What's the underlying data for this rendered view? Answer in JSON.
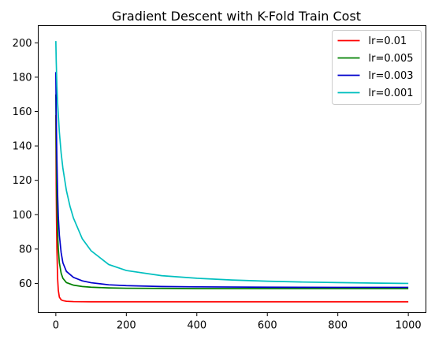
{
  "chart_data": {
    "type": "line",
    "title": "Gradient Descent with K-Fold Train Cost",
    "xlabel": "",
    "ylabel": "",
    "xlim": [
      -50,
      1050
    ],
    "ylim": [
      43,
      210
    ],
    "xticks": [
      0,
      200,
      400,
      600,
      800,
      1000
    ],
    "yticks": [
      60,
      80,
      100,
      120,
      140,
      160,
      180,
      200
    ],
    "grid": false,
    "legend_position": "top-right",
    "series": [
      {
        "name": "lr=0.01",
        "color": "#ff0000",
        "x": [
          0,
          1,
          2,
          3,
          5,
          7,
          10,
          15,
          20,
          30,
          50,
          100,
          200,
          400,
          600,
          800,
          1000
        ],
        "y": [
          158,
          118,
          95,
          80,
          63,
          56,
          52,
          50.5,
          50,
          49.6,
          49.4,
          49.3,
          49.3,
          49.3,
          49.3,
          49.3,
          49.3
        ]
      },
      {
        "name": "lr=0.005",
        "color": "#008000",
        "x": [
          0,
          1,
          2,
          3,
          5,
          7,
          10,
          15,
          20,
          30,
          50,
          75,
          100,
          150,
          200,
          300,
          400,
          600,
          800,
          1000
        ],
        "y": [
          170,
          140,
          122,
          108,
          90,
          80,
          72,
          66,
          63,
          60.5,
          59,
          58.2,
          57.8,
          57.4,
          57.2,
          57.1,
          57,
          57,
          57,
          57
        ]
      },
      {
        "name": "lr=0.003",
        "color": "#0000cc",
        "x": [
          0,
          1,
          2,
          3,
          5,
          7,
          10,
          15,
          20,
          30,
          50,
          75,
          100,
          150,
          200,
          300,
          400,
          600,
          800,
          1000
        ],
        "y": [
          183,
          160,
          145,
          132,
          112,
          99,
          88,
          78,
          72,
          67,
          63.5,
          61.5,
          60.4,
          59.2,
          58.7,
          58.2,
          58,
          57.8,
          57.7,
          57.7
        ]
      },
      {
        "name": "lr=0.001",
        "color": "#00bfbf",
        "x": [
          0,
          1,
          3,
          5,
          10,
          15,
          20,
          30,
          40,
          50,
          75,
          100,
          150,
          200,
          300,
          400,
          500,
          600,
          700,
          800,
          900,
          1000
        ],
        "y": [
          201,
          190,
          175,
          165,
          148,
          136,
          127,
          114,
          105,
          98,
          86,
          79,
          71,
          67.5,
          64.5,
          63,
          62,
          61.3,
          60.8,
          60.5,
          60.2,
          60
        ]
      }
    ]
  }
}
